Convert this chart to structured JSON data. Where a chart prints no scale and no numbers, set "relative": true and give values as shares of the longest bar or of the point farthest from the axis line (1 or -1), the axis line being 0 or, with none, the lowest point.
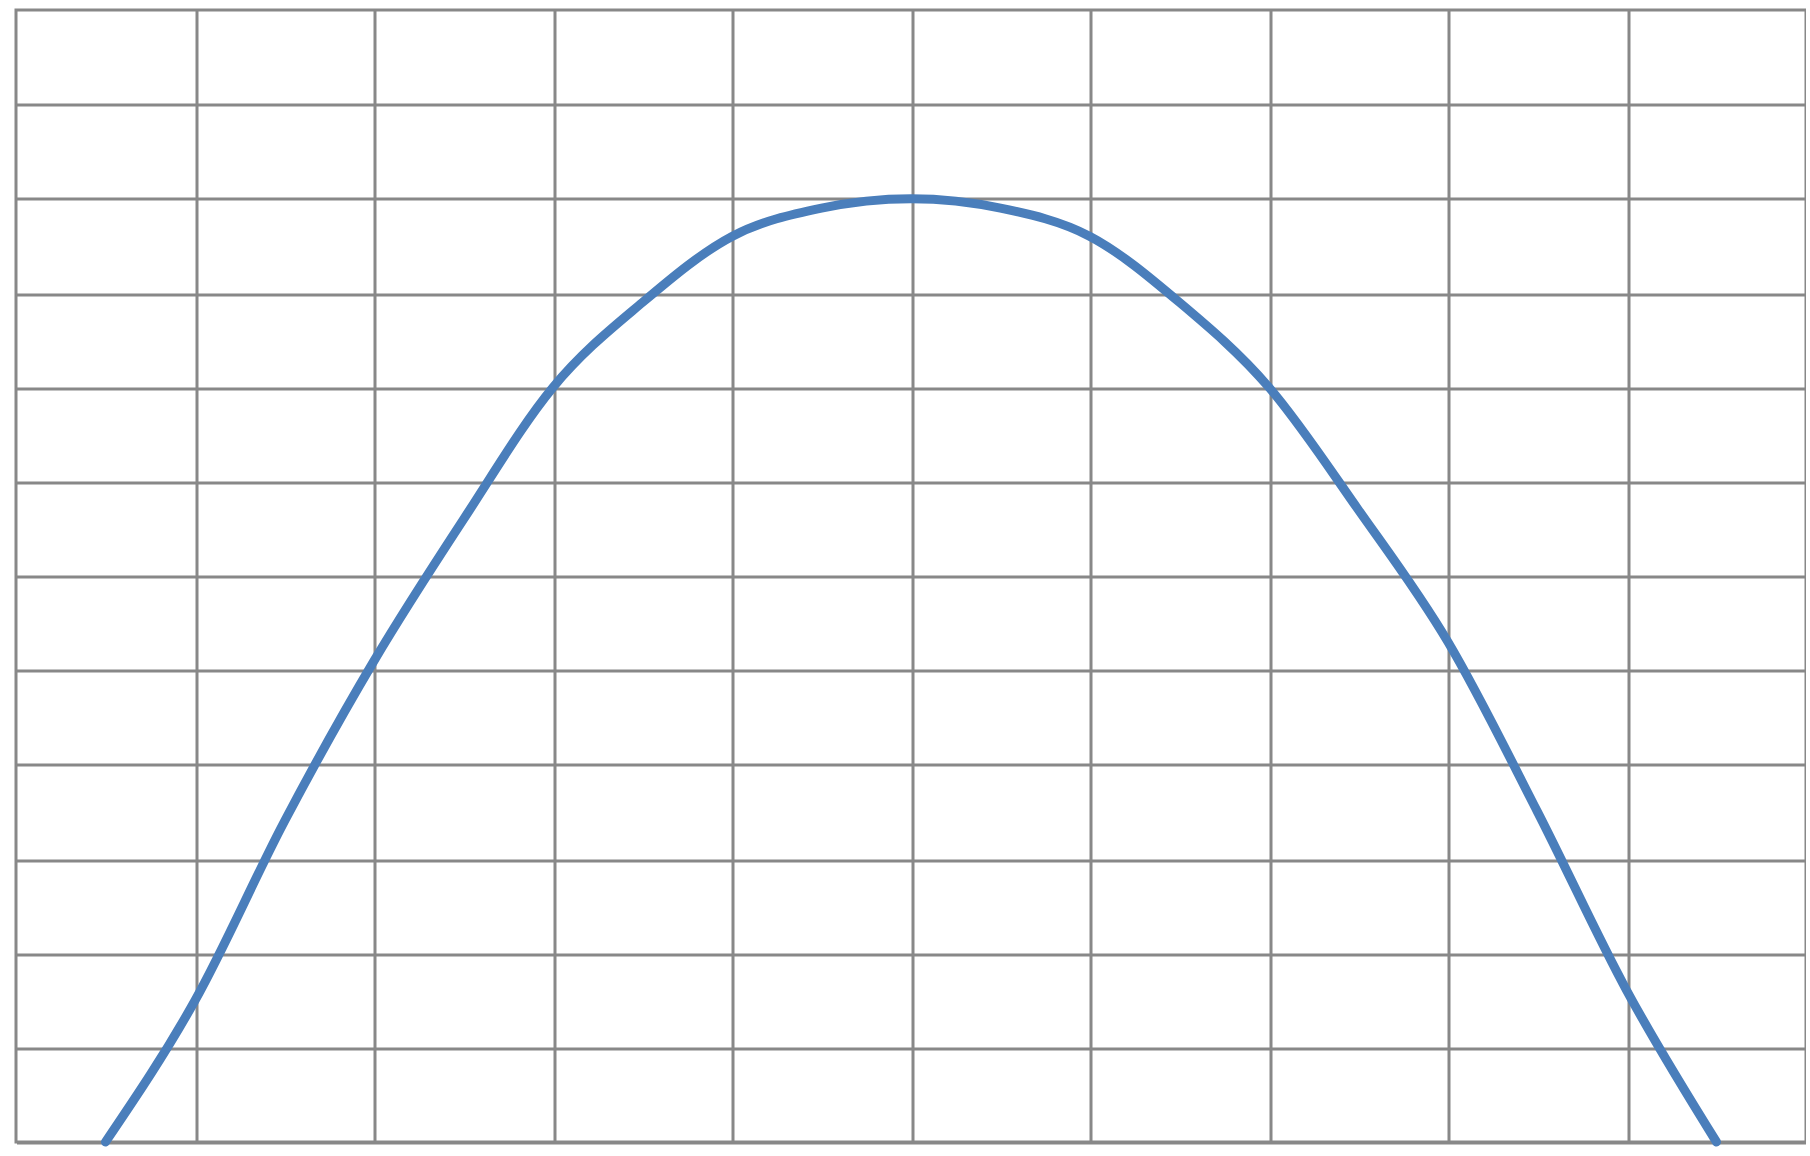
{
  "chart_data": {
    "type": "line",
    "relative": true,
    "categories": [
      null,
      null,
      null,
      null,
      null,
      null,
      null,
      null,
      null,
      null,
      null,
      null,
      null,
      null,
      null,
      null,
      null,
      null,
      null
    ],
    "series": [
      {
        "color": "#4a7ebb",
        "values": [
          0,
          0.15,
          0.34,
          0.51,
          0.66,
          0.8,
          0.89,
          0.96,
          0.99,
          1,
          0.99,
          0.96,
          0.89,
          0.8,
          0.67,
          0.53,
          0.35,
          0.16,
          0
        ]
      }
    ],
    "grid": true,
    "tick_labels": false,
    "marker": "none",
    "line_style": "solid"
  }
}
